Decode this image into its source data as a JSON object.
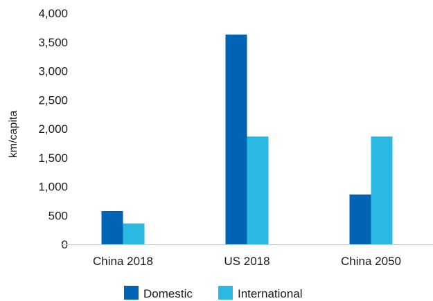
{
  "chart_data": {
    "type": "bar",
    "title": "",
    "xlabel": "",
    "ylabel": "km/capita",
    "ylim": [
      0,
      4000
    ],
    "yticks": [
      0,
      500,
      1000,
      1500,
      2000,
      2500,
      3000,
      3500,
      4000
    ],
    "ytick_labels": [
      "0",
      "500",
      "1,000",
      "1,500",
      "2,000",
      "2,500",
      "3,000",
      "3,500",
      "4,000"
    ],
    "categories": [
      "China 2018",
      "US 2018",
      "China 2050"
    ],
    "series": [
      {
        "name": "Domestic",
        "color": "#0063b4",
        "values": [
          575,
          3630,
          860
        ]
      },
      {
        "name": "International",
        "color": "#29b9e3",
        "values": [
          360,
          1865,
          1865
        ]
      }
    ],
    "grid": false,
    "legend_position": "bottom"
  }
}
